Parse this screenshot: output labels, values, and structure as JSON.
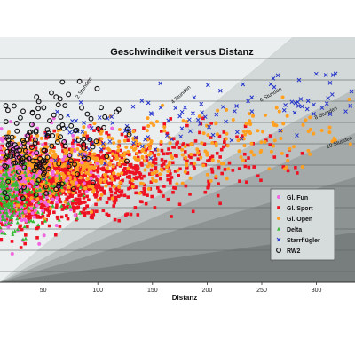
{
  "chart_data": {
    "type": "scatter",
    "title": "Geschwindikeit versus Distanz",
    "xlabel": "Distanz",
    "ylabel": "",
    "xlim": [
      0,
      335
    ],
    "x_ticks": [
      "50",
      "100",
      "150",
      "200",
      "250",
      "300"
    ],
    "grid": true,
    "legend_position": "lower-right",
    "reference_lines": [
      {
        "label": "2 Stunden",
        "hours": 2
      },
      {
        "label": "4 Stunden",
        "hours": 4
      },
      {
        "label": "6 Stunden",
        "hours": 6
      },
      {
        "label": "8 Stunden",
        "hours": 8
      },
      {
        "label": "10 Stunden",
        "hours": 10
      }
    ],
    "series": [
      {
        "name": "Gl. Fun",
        "color": "#f066e0",
        "marker": "circle-filled"
      },
      {
        "name": "Gl. Sport",
        "color": "#ee1122",
        "marker": "square-filled"
      },
      {
        "name": "Gl. Open",
        "color": "#ffa020",
        "marker": "circle-filled"
      },
      {
        "name": "Delta",
        "color": "#33bb33",
        "marker": "triangle-filled"
      },
      {
        "name": "Starrflügler",
        "color": "#2233cc",
        "marker": "x"
      },
      {
        "name": "RW2",
        "color": "#111111",
        "marker": "circle-open"
      }
    ]
  }
}
